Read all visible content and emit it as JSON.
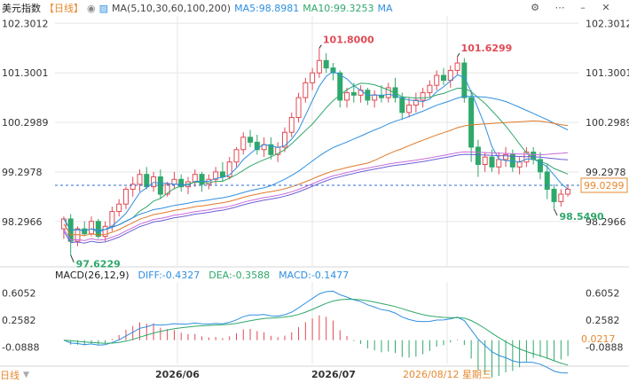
{
  "header": {
    "title": "美元指数",
    "period": "【日线】",
    "ma_config": "MA(5,10,30,60,100,200)",
    "ma_values": [
      {
        "label": "MA5:98.8981",
        "color": "#2f8fe0"
      },
      {
        "label": "MA10:99.3253",
        "color": "#2fa86b"
      },
      {
        "label": "MA",
        "color": "#2f8fe0"
      }
    ]
  },
  "toolbar": {
    "icons": [
      "settings-icon",
      "more-icon",
      "minimize-icon",
      "close-icon"
    ]
  },
  "colors": {
    "up": "#e04a55",
    "down": "#2fa86b",
    "ma5": "#2f8fe0",
    "ma10": "#2fa86b",
    "ma30": "#2f8fe0",
    "ma60": "#e07a2a",
    "ma100": "#c86cd8",
    "ma200": "#6b5fd8",
    "current": "#e5892f",
    "grid": "#e6e6e6"
  },
  "price_axis": {
    "ticks": [
      "102.3012",
      "101.3001",
      "100.2989",
      "99.2978",
      "98.2966"
    ],
    "current_price": "99.0299"
  },
  "annotations": {
    "high_1": "101.8000",
    "high_2": "101.6299",
    "low_1": "97.6229",
    "low_2": "98.5490"
  },
  "macd": {
    "label": "MACD(26,12,9)",
    "diff": "DIFF:-0.4327",
    "dea": "DEA:-0.3588",
    "macd": "MACD:-0.1477",
    "ticks": [
      "0.6052",
      "0.2582",
      "-0.0888"
    ],
    "current": "0.0217"
  },
  "x_axis": {
    "labels": [
      "2026/06",
      "2026/07",
      "2026/08/12 星期三"
    ]
  },
  "footer": {
    "period": "日线"
  },
  "chart_data": {
    "type": "candlestick",
    "title": "美元指数",
    "ylim": [
      97.4,
      102.45
    ],
    "candles": [
      [
        98.15,
        98.4,
        97.95,
        98.35
      ],
      [
        98.35,
        98.45,
        97.62,
        97.9
      ],
      [
        97.9,
        98.2,
        97.8,
        98.15
      ],
      [
        98.15,
        98.3,
        98.0,
        98.05
      ],
      [
        98.05,
        98.4,
        98.0,
        98.3
      ],
      [
        98.3,
        98.35,
        97.95,
        98.0
      ],
      [
        98.0,
        98.3,
        97.9,
        98.2
      ],
      [
        98.2,
        98.6,
        98.1,
        98.5
      ],
      [
        98.5,
        98.75,
        98.4,
        98.65
      ],
      [
        98.65,
        99.0,
        98.55,
        98.95
      ],
      [
        98.95,
        99.2,
        98.8,
        99.05
      ],
      [
        99.05,
        99.35,
        98.9,
        99.25
      ],
      [
        99.25,
        99.4,
        98.95,
        99.0
      ],
      [
        99.0,
        99.3,
        98.9,
        99.2
      ],
      [
        99.2,
        99.35,
        98.75,
        98.85
      ],
      [
        98.85,
        99.1,
        98.8,
        99.05
      ],
      [
        99.05,
        99.3,
        98.95,
        99.15
      ],
      [
        99.15,
        99.25,
        98.9,
        99.0
      ],
      [
        99.0,
        99.2,
        98.85,
        99.1
      ],
      [
        99.1,
        99.35,
        99.0,
        99.25
      ],
      [
        99.25,
        99.3,
        98.9,
        99.05
      ],
      [
        99.05,
        99.25,
        98.95,
        99.15
      ],
      [
        99.15,
        99.4,
        99.05,
        99.3
      ],
      [
        99.3,
        99.5,
        99.1,
        99.2
      ],
      [
        99.2,
        99.6,
        99.15,
        99.5
      ],
      [
        99.5,
        99.8,
        99.4,
        99.75
      ],
      [
        99.75,
        100.1,
        99.65,
        100.0
      ],
      [
        100.0,
        100.15,
        99.8,
        99.9
      ],
      [
        99.9,
        100.05,
        99.65,
        99.75
      ],
      [
        99.75,
        100.0,
        99.6,
        99.85
      ],
      [
        99.85,
        100.0,
        99.55,
        99.65
      ],
      [
        99.65,
        99.9,
        99.5,
        99.8
      ],
      [
        99.8,
        100.2,
        99.7,
        100.1
      ],
      [
        100.1,
        100.5,
        100.0,
        100.4
      ],
      [
        100.4,
        100.9,
        100.3,
        100.8
      ],
      [
        100.8,
        101.2,
        100.7,
        101.1
      ],
      [
        101.1,
        101.4,
        100.95,
        101.3
      ],
      [
        101.3,
        101.8,
        101.2,
        101.55
      ],
      [
        101.55,
        101.7,
        101.3,
        101.4
      ],
      [
        101.4,
        101.5,
        101.15,
        101.3
      ],
      [
        101.3,
        101.35,
        100.6,
        100.75
      ],
      [
        100.75,
        101.0,
        100.6,
        100.9
      ],
      [
        100.9,
        101.1,
        100.7,
        100.85
      ],
      [
        100.85,
        101.05,
        100.7,
        100.95
      ],
      [
        100.95,
        101.0,
        100.65,
        100.75
      ],
      [
        100.75,
        100.95,
        100.6,
        100.85
      ],
      [
        100.85,
        101.05,
        100.7,
        100.8
      ],
      [
        100.8,
        101.1,
        100.7,
        101.0
      ],
      [
        101.0,
        101.2,
        100.7,
        100.8
      ],
      [
        100.8,
        100.9,
        100.35,
        100.5
      ],
      [
        100.5,
        100.8,
        100.4,
        100.65
      ],
      [
        100.65,
        100.9,
        100.5,
        100.75
      ],
      [
        100.75,
        101.0,
        100.6,
        100.9
      ],
      [
        100.9,
        101.15,
        100.8,
        101.05
      ],
      [
        101.05,
        101.35,
        100.95,
        101.25
      ],
      [
        101.25,
        101.4,
        101.05,
        101.15
      ],
      [
        101.15,
        101.45,
        101.0,
        101.35
      ],
      [
        101.35,
        101.63,
        101.25,
        101.5
      ],
      [
        101.5,
        101.6,
        100.7,
        100.8
      ],
      [
        100.8,
        100.95,
        99.5,
        99.8
      ],
      [
        99.8,
        99.95,
        99.2,
        99.45
      ],
      [
        99.45,
        99.7,
        99.3,
        99.6
      ],
      [
        99.6,
        99.75,
        99.3,
        99.4
      ],
      [
        99.4,
        99.7,
        99.25,
        99.55
      ],
      [
        99.55,
        99.8,
        99.4,
        99.65
      ],
      [
        99.65,
        99.75,
        99.3,
        99.4
      ],
      [
        99.4,
        99.6,
        99.25,
        99.5
      ],
      [
        99.5,
        99.8,
        99.4,
        99.7
      ],
      [
        99.7,
        99.8,
        99.45,
        99.55
      ],
      [
        99.55,
        99.7,
        99.15,
        99.3
      ],
      [
        99.3,
        99.45,
        98.75,
        98.95
      ],
      [
        98.95,
        99.05,
        98.55,
        98.7
      ],
      [
        98.7,
        98.95,
        98.6,
        98.85
      ],
      [
        98.85,
        99.05,
        98.8,
        98.95
      ]
    ],
    "series_names": [
      "MA5",
      "MA10",
      "MA30",
      "MA60",
      "MA100",
      "MA200"
    ],
    "macd": {
      "ylim": [
        -0.3,
        0.75
      ],
      "diff_end": -0.4327,
      "dea_end": -0.3588,
      "hist_end": -0.1477
    }
  }
}
